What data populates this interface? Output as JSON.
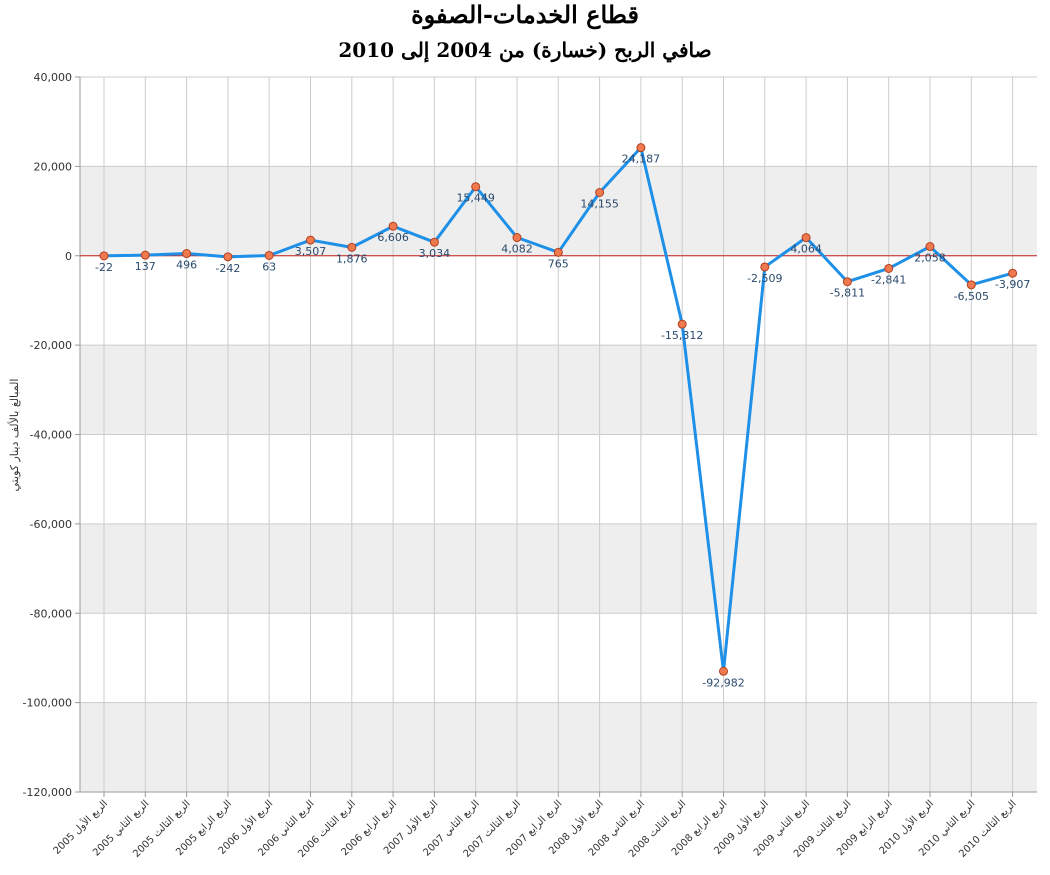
{
  "chart_data": {
    "type": "line",
    "title": "قطاع الخدمات-الصفوة",
    "subtitle": "صافي الربح (خسارة) من 2004 إلى 2010",
    "xlabel": "",
    "ylabel": "المبالغ بالألف دينار كويتي",
    "ylim": [
      -120000,
      40000
    ],
    "yticks": [
      40000,
      20000,
      0,
      -20000,
      -40000,
      -60000,
      -80000,
      -100000,
      -120000
    ],
    "ytick_labels": [
      "40,000",
      "20,000",
      "0",
      "-20,000",
      "-40,000",
      "-60,000",
      "-80,000",
      "-100,000",
      "-120,000"
    ],
    "grid": true,
    "categories": [
      "الربع الأول 2005",
      "الربع الثاني 2005",
      "الربع الثالث 2005",
      "الربع الرابع 2005",
      "الربع الأول 2006",
      "الربع الثاني 2006",
      "الربع الثالث 2006",
      "الربع الرابع 2006",
      "الربع الأول 2007",
      "الربع الثاني 2007",
      "الربع الثالث 2007",
      "الربع الرابع 2007",
      "الربع الأول 2008",
      "الربع الثاني 2008",
      "الربع الثالث 2008",
      "الربع الرابع 2008",
      "الربع الأول 2009",
      "الربع الثاني 2009",
      "الربع الثالث 2009",
      "الربع الرابع 2009",
      "الربع الأول 2010",
      "الربع الثاني 2010",
      "الربع الثالث 2010"
    ],
    "series": [
      {
        "values": [
          -22,
          137,
          496,
          -242,
          63,
          3507,
          1876,
          6606,
          3034,
          15449,
          4082,
          765,
          14155,
          24187,
          -15312,
          -92982,
          -2509,
          4064,
          -5811,
          -2841,
          2058,
          -6505,
          -3907
        ],
        "labels": [
          "-22",
          "137",
          "496",
          "-242",
          "63",
          "3,507",
          "1,876",
          "6,606",
          "3,034",
          "15,449",
          "4,082",
          "765",
          "14,155",
          "24,187",
          "-15,312",
          "-92,982",
          "-2,509",
          "4,064",
          "-5,811",
          "-2,841",
          "2,058",
          "-6,505",
          "-3,907"
        ],
        "label_position": [
          "below",
          "below",
          "below",
          "below",
          "below",
          "below",
          "below",
          "below",
          "below",
          "above",
          "below",
          "below",
          "above",
          "above",
          "below",
          "below",
          "below",
          "below",
          "below",
          "below",
          "below",
          "below",
          "below"
        ]
      }
    ]
  },
  "colors": {
    "line": "#1e90e8",
    "marker_fill": "#f07a50",
    "marker_stroke": "#b04020",
    "zero_line": "#cc2222",
    "band": "#eeeeee",
    "grid": "#cccccc"
  }
}
